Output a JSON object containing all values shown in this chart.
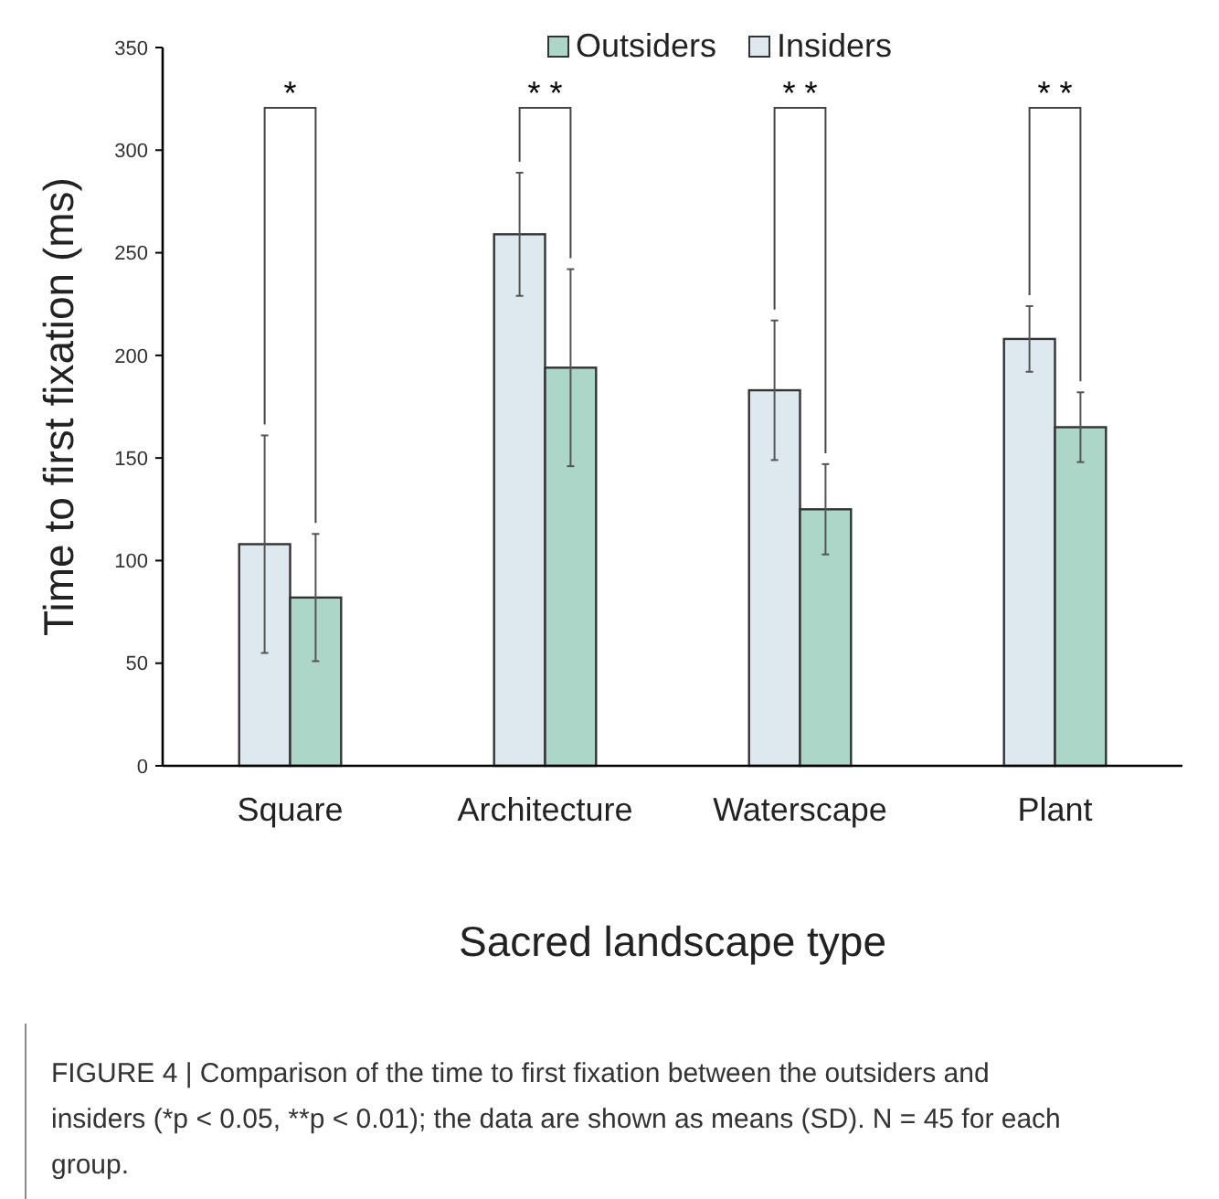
{
  "chart_data": {
    "type": "bar",
    "xlabel": "Sacred landscape type",
    "ylabel": "Time to first fixation (ms)",
    "categories": [
      "Square",
      "Architecture",
      "Waterscape",
      "Plant"
    ],
    "series": [
      {
        "name": "Insiders",
        "color": "#dde8ef",
        "values": [
          108,
          259,
          183,
          208
        ],
        "errors": [
          53,
          30,
          34,
          16
        ]
      },
      {
        "name": "Outsiders",
        "color": "#acd6c8",
        "values": [
          82,
          194,
          125,
          165
        ],
        "errors": [
          31,
          48,
          22,
          17
        ]
      }
    ],
    "ylim": [
      0,
      350
    ],
    "yticks": [
      0,
      50,
      100,
      150,
      200,
      250,
      300,
      350
    ],
    "grid": false,
    "legend": "top",
    "annotations": [
      "*",
      "* *",
      "* *",
      "* *",
      "FIGURE 4 | Comparison of the time to first fixation between the outsiders and insiders (*p < 0.05, **p < 0.01); the data are shown as means (SD). N = 45 for each group."
    ]
  }
}
